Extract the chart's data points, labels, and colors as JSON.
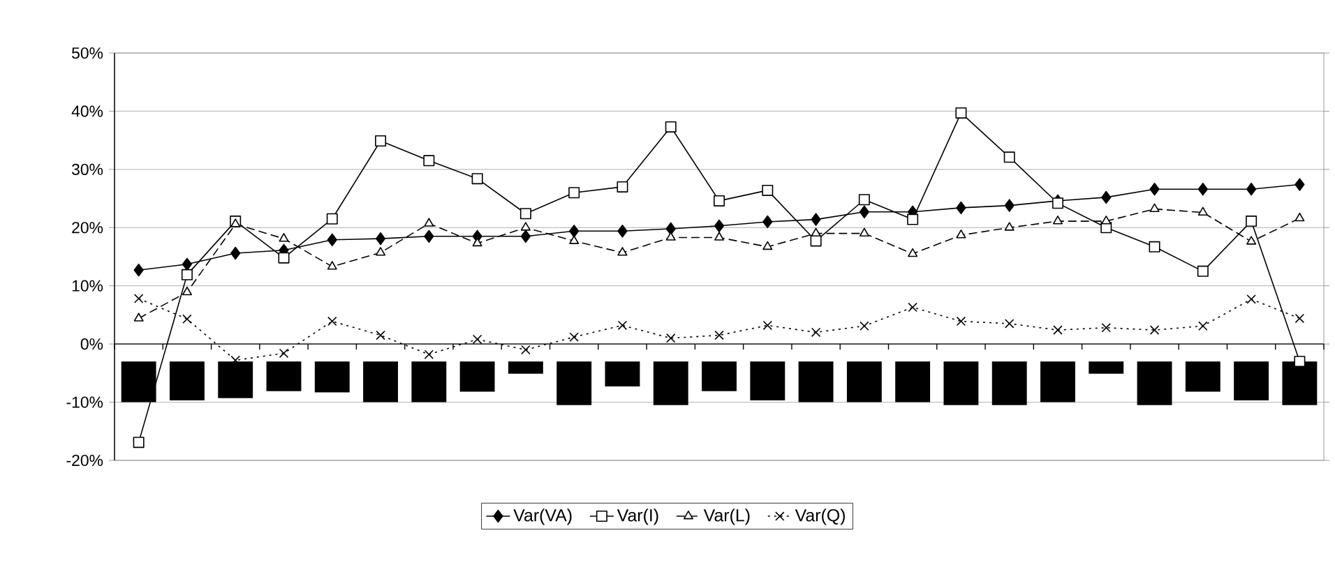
{
  "chart_data": {
    "type": "line",
    "categories": [
      null,
      null,
      null,
      null,
      null,
      null,
      null,
      null,
      null,
      null,
      null,
      null,
      null,
      null,
      null,
      null,
      null,
      null,
      null,
      null,
      null,
      null,
      null,
      null,
      null
    ],
    "series": [
      {
        "type": "bar",
        "color": "#000000",
        "base": [
          -3,
          -3,
          -3,
          -3,
          -3,
          -3,
          -3,
          -3,
          -3,
          -3,
          -3,
          -3,
          -3,
          -3,
          -3,
          -3,
          -3,
          -3,
          -3,
          -3,
          -3,
          -3,
          -3,
          -3,
          -3
        ],
        "values": [
          -7,
          -6.7,
          -6.3,
          -5.1,
          -5.3,
          -7,
          -7,
          -5.2,
          -2.1,
          -7.5,
          -4.3,
          -7.5,
          -5.1,
          -6.7,
          -7,
          -7,
          -7,
          -7.5,
          -7.5,
          -7,
          -2.1,
          -7.5,
          -5.2,
          -6.7,
          -7.5
        ]
      },
      {
        "name": "Var(VA)",
        "color": "#000000",
        "marker": "diamond",
        "line_style": "solid",
        "values": [
          12.7,
          13.7,
          15.6,
          16.1,
          17.9,
          18.1,
          18.5,
          18.5,
          18.5,
          19.4,
          19.4,
          19.8,
          20.3,
          21.0,
          21.4,
          22.7,
          22.7,
          23.4,
          23.8,
          24.6,
          25.2,
          26.6,
          26.6,
          26.6,
          27.4
        ]
      },
      {
        "name": "Var(I)",
        "color": "#000000",
        "marker": "square",
        "line_style": "solid",
        "values": [
          -16.9,
          11.9,
          21.1,
          14.8,
          21.5,
          34.9,
          31.5,
          28.4,
          22.4,
          26.0,
          27.0,
          37.3,
          24.6,
          26.4,
          17.7,
          24.8,
          21.4,
          39.7,
          32.1,
          24.2,
          20.0,
          16.7,
          12.5,
          21.1,
          -3
        ]
      },
      {
        "name": "Var(L)",
        "color": "#000000",
        "marker": "triangle",
        "line_style": "dashed",
        "values": [
          4.4,
          8.9,
          20.6,
          18.1,
          13.3,
          15.7,
          20.7,
          17.3,
          20.0,
          17.7,
          15.7,
          18.3,
          18.3,
          16.7,
          19.0,
          19.0,
          15.5,
          18.7,
          20.0,
          21.1,
          21.1,
          23.2,
          22.6,
          17.6,
          21.6
        ]
      },
      {
        "name": "Var(Q)",
        "color": "#000000",
        "marker": "cross",
        "line_style": "dotted",
        "values": [
          7.8,
          4.3,
          -2.8,
          -1.6,
          3.9,
          1.5,
          -1.8,
          0.8,
          -1.0,
          1.2,
          3.2,
          1.0,
          1.5,
          3.2,
          2.0,
          3.1,
          6.3,
          3.9,
          3.5,
          2.4,
          2.8,
          2.4,
          3.1,
          7.7,
          4.4
        ]
      }
    ],
    "ylim": [
      -20,
      50
    ],
    "yticks": [
      {
        "value": -20,
        "label": "-20%"
      },
      {
        "value": -10,
        "label": "-10%"
      },
      {
        "value": 0,
        "label": "0%"
      },
      {
        "value": 10,
        "label": "10%"
      },
      {
        "value": 20,
        "label": "20%"
      },
      {
        "value": 30,
        "label": "30%"
      },
      {
        "value": 40,
        "label": "40%"
      },
      {
        "value": 50,
        "label": "50%"
      }
    ],
    "grid": "y",
    "legend": "bottom"
  }
}
